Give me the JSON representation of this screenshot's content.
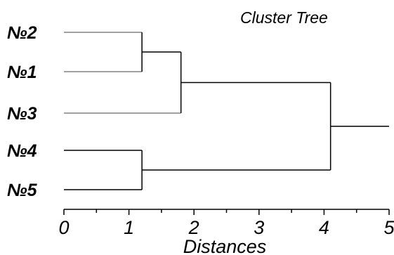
{
  "title": "Cluster Tree",
  "x_axis": {
    "label": "Distances",
    "min": 0,
    "max": 5,
    "ticks": [
      "0",
      "1",
      "2",
      "3",
      "4",
      "5"
    ],
    "minor_step": 0.5
  },
  "leaves": [
    {
      "id": "n2",
      "label": "№2",
      "group_color": "#a0a0a0"
    },
    {
      "id": "n1",
      "label": "№1",
      "group_color": "#a0a0a0"
    },
    {
      "id": "n3",
      "label": "№3",
      "group_color": "#a0a0a0"
    },
    {
      "id": "n4",
      "label": "№4",
      "group_color": "#404040"
    },
    {
      "id": "n5",
      "label": "№5",
      "group_color": "#404040"
    }
  ],
  "merges": [
    {
      "id": "m1",
      "left": "n2",
      "right": "n1",
      "distance": 1.2
    },
    {
      "id": "m2",
      "left": "m1",
      "right": "n3",
      "distance": 1.8
    },
    {
      "id": "m3",
      "left": "n4",
      "right": "n5",
      "distance": 1.2
    },
    {
      "id": "m4",
      "left": "m2",
      "right": "m3",
      "distance": 4.1
    }
  ],
  "root_distance": 5.0,
  "colors": {
    "link": "#000000",
    "axis": "#000000"
  }
}
